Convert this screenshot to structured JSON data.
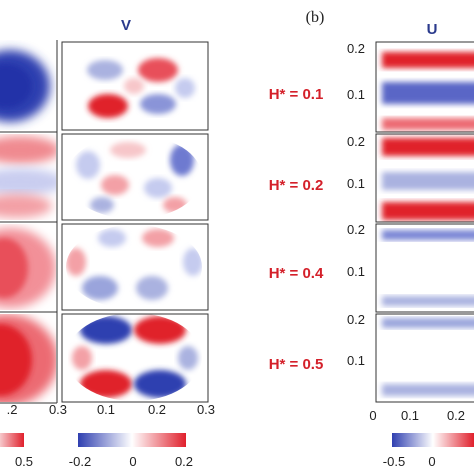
{
  "figure": {
    "panel_a": {
      "column_title": "V",
      "x_ticks": [
        ".2",
        "0.3",
        "0.1",
        "0.2",
        "0.3"
      ],
      "colorbar_left_ticks": [
        "0.5"
      ],
      "colorbar_right_ticks": [
        "-0.2",
        "0",
        "0.2"
      ]
    },
    "panel_b": {
      "label": "(b)",
      "column_title": "U",
      "row_labels": [
        "H* = 0.1",
        "H* = 0.2",
        "H* = 0.4",
        "H* = 0.5"
      ],
      "y_ticks": [
        "0.2",
        "0.1"
      ],
      "x_ticks": [
        "0",
        "0.1",
        "0.2"
      ],
      "colorbar_ticks": [
        "-0.5",
        "0"
      ]
    },
    "colors": {
      "positive": "#e0202c",
      "negative": "#2f3fb0",
      "label_red": "#d4202a",
      "title_blue": "#2a3a8c"
    }
  }
}
